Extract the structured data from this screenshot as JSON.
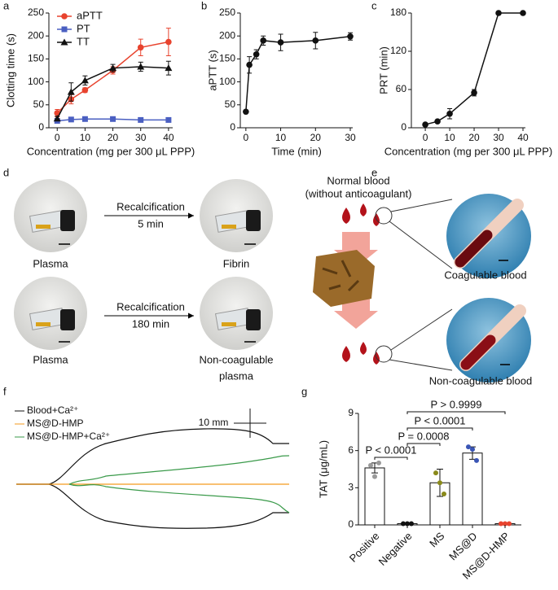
{
  "chart_data": [
    {
      "panel": "a",
      "type": "line",
      "x": [
        0,
        5,
        10,
        20,
        30,
        40
      ],
      "xlim": [
        -3,
        41.5
      ],
      "xticks": [
        0,
        10,
        20,
        30,
        40
      ],
      "ylim": [
        0,
        250
      ],
      "yticks": [
        0,
        50,
        100,
        150,
        200,
        250
      ],
      "xlabel": "Concentration (mg per 300 μL PPP)",
      "ylabel": "Clotting time (s)",
      "legend": "upper left",
      "series": [
        {
          "name": "aPTT",
          "color": "#e8432e",
          "marker": "circle",
          "values": [
            32,
            62,
            82,
            125,
            175,
            187
          ],
          "error": [
            8,
            10,
            5,
            8,
            18,
            30
          ]
        },
        {
          "name": "PT",
          "color": "#4a5fc1",
          "marker": "square",
          "values": [
            15,
            18,
            19,
            19,
            17,
            17
          ],
          "error": [
            2,
            2,
            2,
            2,
            2,
            2
          ]
        },
        {
          "name": "TT",
          "color": "#111111",
          "marker": "triangle",
          "values": [
            20,
            78,
            103,
            130,
            133,
            130
          ],
          "error": [
            5,
            20,
            10,
            8,
            10,
            15
          ]
        }
      ]
    },
    {
      "panel": "b",
      "type": "line",
      "x": [
        0,
        1,
        3,
        5,
        10,
        20,
        30
      ],
      "xlim": [
        -1.6,
        30.7
      ],
      "xticks": [
        0,
        10,
        20,
        30
      ],
      "ylim": [
        0,
        250
      ],
      "yticks": [
        0,
        50,
        100,
        150,
        200,
        250
      ],
      "xlabel": "Time (min)",
      "ylabel": "aPTT (s)",
      "series": [
        {
          "color": "#111111",
          "marker": "circle",
          "values": [
            35,
            137,
            160,
            190,
            186,
            190,
            199
          ],
          "error": [
            0,
            18,
            10,
            10,
            18,
            18,
            8
          ]
        }
      ]
    },
    {
      "panel": "c",
      "type": "line",
      "x": [
        0,
        5,
        10,
        20,
        30,
        40
      ],
      "xlim": [
        -5.7,
        41
      ],
      "xticks": [
        0,
        10,
        20,
        30,
        40
      ],
      "ylim": [
        0,
        180
      ],
      "yticks": [
        0,
        60,
        120,
        180
      ],
      "xlabel": "Concentration (mg per 300 μL PPP)",
      "ylabel": "PRT (min)",
      "series": [
        {
          "color": "#111111",
          "marker": "circle",
          "values": [
            5,
            10,
            22,
            55,
            180,
            180
          ],
          "error": [
            0,
            2,
            8,
            5,
            0,
            0
          ]
        }
      ]
    },
    {
      "panel": "g",
      "type": "bar",
      "categories": [
        "Positive",
        "Negative",
        "MS",
        "MS@D",
        "MS@D-HMP"
      ],
      "values": [
        4.6,
        0.1,
        3.4,
        5.8,
        0.1
      ],
      "error": [
        0.4,
        0.05,
        1.1,
        0.5,
        0.05
      ],
      "points": [
        [
          4.8,
          3.9,
          5.0
        ],
        [
          0.1,
          0.1,
          0.1
        ],
        [
          4.2,
          3.4,
          2.5
        ],
        [
          6.3,
          6.1,
          5.2
        ],
        [
          0.1,
          0.1,
          0.1
        ]
      ],
      "point_colors": [
        "#9a9a9a",
        "#111111",
        "#8a8a1a",
        "#3a55b5",
        "#e8432e"
      ],
      "ylim": [
        0,
        9
      ],
      "yticks": [
        0,
        3,
        6,
        9
      ],
      "ylabel": "TAT (μg/mL)",
      "annotations": [
        "P > 0.9999",
        "P < 0.0001",
        "P = 0.0008",
        "P < 0.0001"
      ]
    }
  ],
  "panel_d": {
    "label": "d",
    "rows": [
      {
        "start": "Plasma",
        "step": "Recalcification",
        "time": "5 min",
        "end": [
          "Fibrin"
        ]
      },
      {
        "start": "Plasma",
        "step": "Recalcification",
        "time": "180 min",
        "end": [
          "Non-coagulable",
          "plasma"
        ]
      }
    ]
  },
  "panel_e": {
    "label": "e",
    "source": [
      "Normal blood",
      "(without anticoagulant)"
    ],
    "top": "Coagulable blood",
    "bottom": "Non-coagulable blood"
  },
  "panel_f": {
    "label": "f",
    "legend": [
      "Blood+Ca²⁺",
      "MS@D-HMP",
      "MS@D-HMP+Ca²⁺"
    ],
    "scale": "10 mm"
  }
}
